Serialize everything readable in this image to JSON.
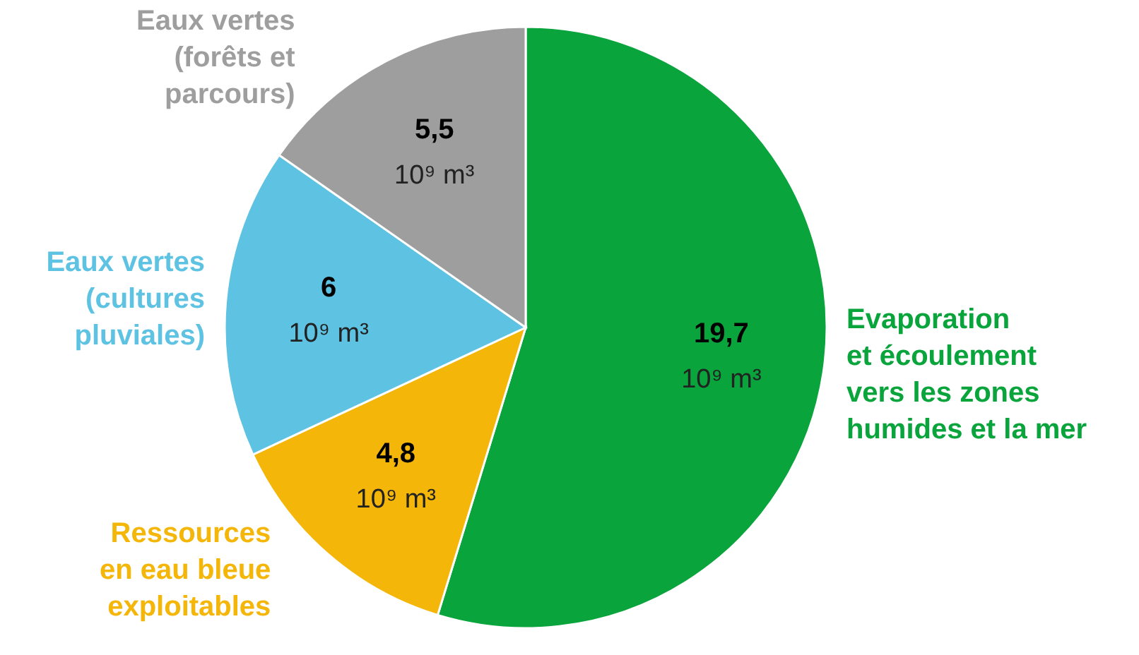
{
  "chart_data": {
    "type": "pie",
    "categories": [
      "Evaporation\net écoulement\nvers les zones\nhumides et la mer",
      "Ressources\nen eau bleue\nexploitables",
      "Eaux vertes\n(cultures\npluviales)",
      "Eaux vertes\n(forêts et\nparcours)"
    ],
    "values": [
      19.7,
      4.8,
      6,
      5.5
    ],
    "colors": [
      "#0aa43c",
      "#f5b60a",
      "#5ec3e3",
      "#9e9e9e"
    ],
    "value_labels": [
      "19,7",
      "4,8",
      "6",
      "5,5"
    ],
    "annotations": [
      "10⁹ m³",
      "10⁹ m³",
      "10⁹ m³",
      "10⁹ m³"
    ],
    "legend": false
  }
}
